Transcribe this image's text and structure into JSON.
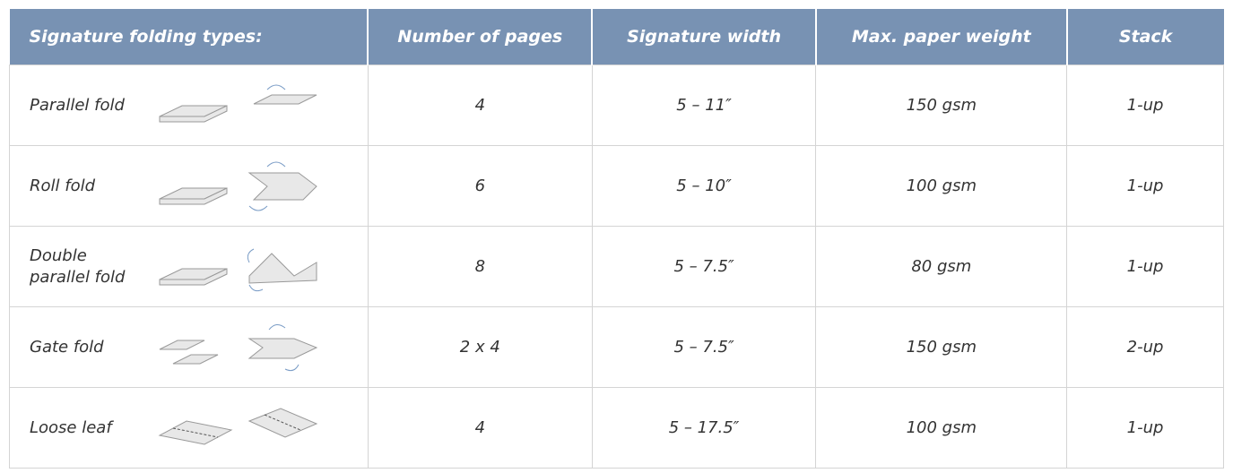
{
  "table": {
    "columns": [
      "Signature folding types:",
      "Number of pages",
      "Signature width",
      "Max. paper weight",
      "Stack"
    ],
    "rows": [
      [
        "Parallel fold",
        "4",
        "5 – 11″",
        "150 gsm",
        "1-up"
      ],
      [
        "Roll fold",
        "6",
        "5 – 10″",
        "100 gsm",
        "1-up"
      ],
      [
        "Double parallel fold",
        "8",
        "5 – 7.5″",
        "80 gsm",
        "1-up"
      ],
      [
        "Gate fold",
        "2 x 4",
        "5 – 7.5″",
        "150 gsm",
        "2-up"
      ],
      [
        "Loose leaf",
        "4",
        "5 – 17.5″",
        "100 gsm",
        "1-up"
      ]
    ]
  }
}
